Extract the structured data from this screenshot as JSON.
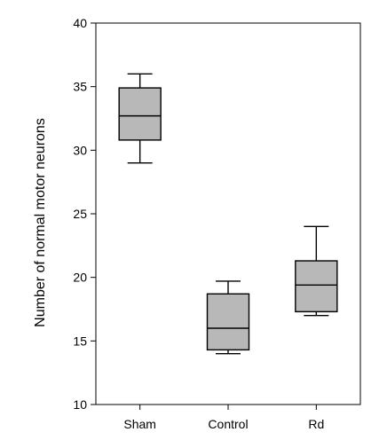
{
  "chart_data": {
    "type": "box",
    "title": "",
    "xlabel": "",
    "ylabel": "Number of normal motor neurons",
    "ylim": [
      10,
      40
    ],
    "yticks": [
      10,
      15,
      20,
      25,
      30,
      35,
      40
    ],
    "grid": false,
    "legend": "none",
    "box_fill": "#b8b8b8",
    "categories": [
      "Sham",
      "Control",
      "Rd"
    ],
    "boxes": [
      {
        "category": "Sham",
        "whisker_low": 29.0,
        "q1": 30.8,
        "median": 32.7,
        "q3": 34.9,
        "whisker_high": 36.0
      },
      {
        "category": "Control",
        "whisker_low": 14.0,
        "q1": 14.3,
        "median": 16.0,
        "q3": 18.7,
        "whisker_high": 19.7
      },
      {
        "category": "Rd",
        "whisker_low": 17.0,
        "q1": 17.3,
        "median": 19.4,
        "q3": 21.3,
        "whisker_high": 24.0
      }
    ]
  }
}
